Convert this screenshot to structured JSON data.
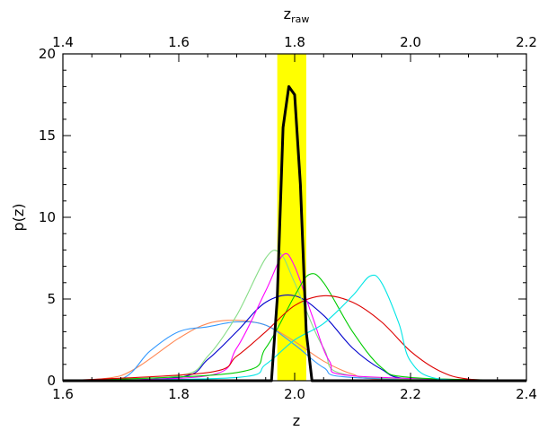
{
  "chart_data": {
    "type": "line",
    "xlabel": "z",
    "ylabel": "p(z)",
    "top_axis": {
      "label": "z",
      "label_subscript": "raw",
      "lim": [
        1.4,
        2.2
      ],
      "ticks": [
        "1.4",
        "1.6",
        "1.8",
        "2.0",
        "2.2"
      ]
    },
    "xlim": [
      1.6,
      2.4
    ],
    "ylim": [
      0,
      20
    ],
    "x_ticks": [
      "1.6",
      "1.8",
      "2.0",
      "2.2",
      "2.4"
    ],
    "y_ticks": [
      "0",
      "5",
      "10",
      "15",
      "20"
    ],
    "grid": false,
    "shaded_band": {
      "x_range": [
        1.97,
        2.02
      ],
      "color": "#ffff00"
    },
    "series": [
      {
        "color": "#000000",
        "bold": true,
        "x": [
          1.6,
          1.96,
          1.97,
          1.98,
          1.99,
          2.0,
          2.01,
          2.02,
          2.03,
          2.4
        ],
        "y": [
          0,
          0,
          5,
          15.5,
          18,
          17.5,
          12,
          3,
          0,
          0
        ]
      },
      {
        "color": "#ff8855",
        "x": [
          1.6,
          1.7,
          1.8,
          1.85,
          1.9,
          1.95,
          2.0,
          2.05,
          2.1,
          2.15,
          2.4
        ],
        "y": [
          0,
          0.3,
          2.6,
          3.5,
          3.7,
          3.4,
          2.4,
          1.2,
          0.4,
          0.1,
          0
        ]
      },
      {
        "color": "#3399ff",
        "x": [
          1.6,
          1.7,
          1.75,
          1.8,
          1.85,
          1.9,
          1.95,
          2.0,
          2.05,
          2.1,
          2.4
        ],
        "y": [
          0,
          0.1,
          1.8,
          3.0,
          3.3,
          3.6,
          3.4,
          2.2,
          0.8,
          0.2,
          0
        ]
      },
      {
        "color": "#0000cc",
        "x": [
          1.6,
          1.8,
          1.85,
          1.9,
          1.95,
          2.0,
          2.05,
          2.1,
          2.15,
          2.2,
          2.4
        ],
        "y": [
          0,
          0.2,
          1.3,
          3.0,
          4.8,
          5.2,
          4.0,
          2.0,
          0.7,
          0.1,
          0
        ]
      },
      {
        "color": "#88dd88",
        "x": [
          1.6,
          1.8,
          1.85,
          1.9,
          1.95,
          1.975,
          2.0,
          2.05,
          2.1,
          2.4
        ],
        "y": [
          0,
          0.3,
          1.5,
          4.0,
          7.5,
          7.8,
          6.0,
          2.0,
          0.3,
          0
        ]
      },
      {
        "color": "#ff00ff",
        "x": [
          1.6,
          1.85,
          1.9,
          1.95,
          1.98,
          2.0,
          2.03,
          2.06,
          2.1,
          2.4
        ],
        "y": [
          0,
          0.3,
          2.0,
          5.5,
          7.7,
          7.0,
          4.0,
          1.2,
          0.3,
          0
        ]
      },
      {
        "color": "#00cc00",
        "x": [
          1.6,
          1.9,
          1.95,
          2.0,
          2.025,
          2.05,
          2.1,
          2.15,
          2.2,
          2.4
        ],
        "y": [
          0,
          0.5,
          2.0,
          5.2,
          6.5,
          6.0,
          3.0,
          0.8,
          0.2,
          0
        ]
      },
      {
        "color": "#dd0000",
        "x": [
          1.6,
          1.85,
          1.9,
          1.95,
          2.0,
          2.05,
          2.1,
          2.15,
          2.2,
          2.25,
          2.3,
          2.4
        ],
        "y": [
          0,
          0.5,
          1.5,
          3.0,
          4.6,
          5.2,
          4.8,
          3.6,
          1.8,
          0.6,
          0.1,
          0
        ]
      },
      {
        "color": "#00e5e5",
        "x": [
          1.6,
          1.9,
          1.95,
          2.0,
          2.05,
          2.1,
          2.13,
          2.15,
          2.18,
          2.2,
          2.25,
          2.4
        ],
        "y": [
          0,
          0.2,
          1.0,
          2.5,
          3.5,
          5.2,
          6.4,
          6.0,
          3.5,
          1.2,
          0.1,
          0
        ]
      }
    ]
  }
}
